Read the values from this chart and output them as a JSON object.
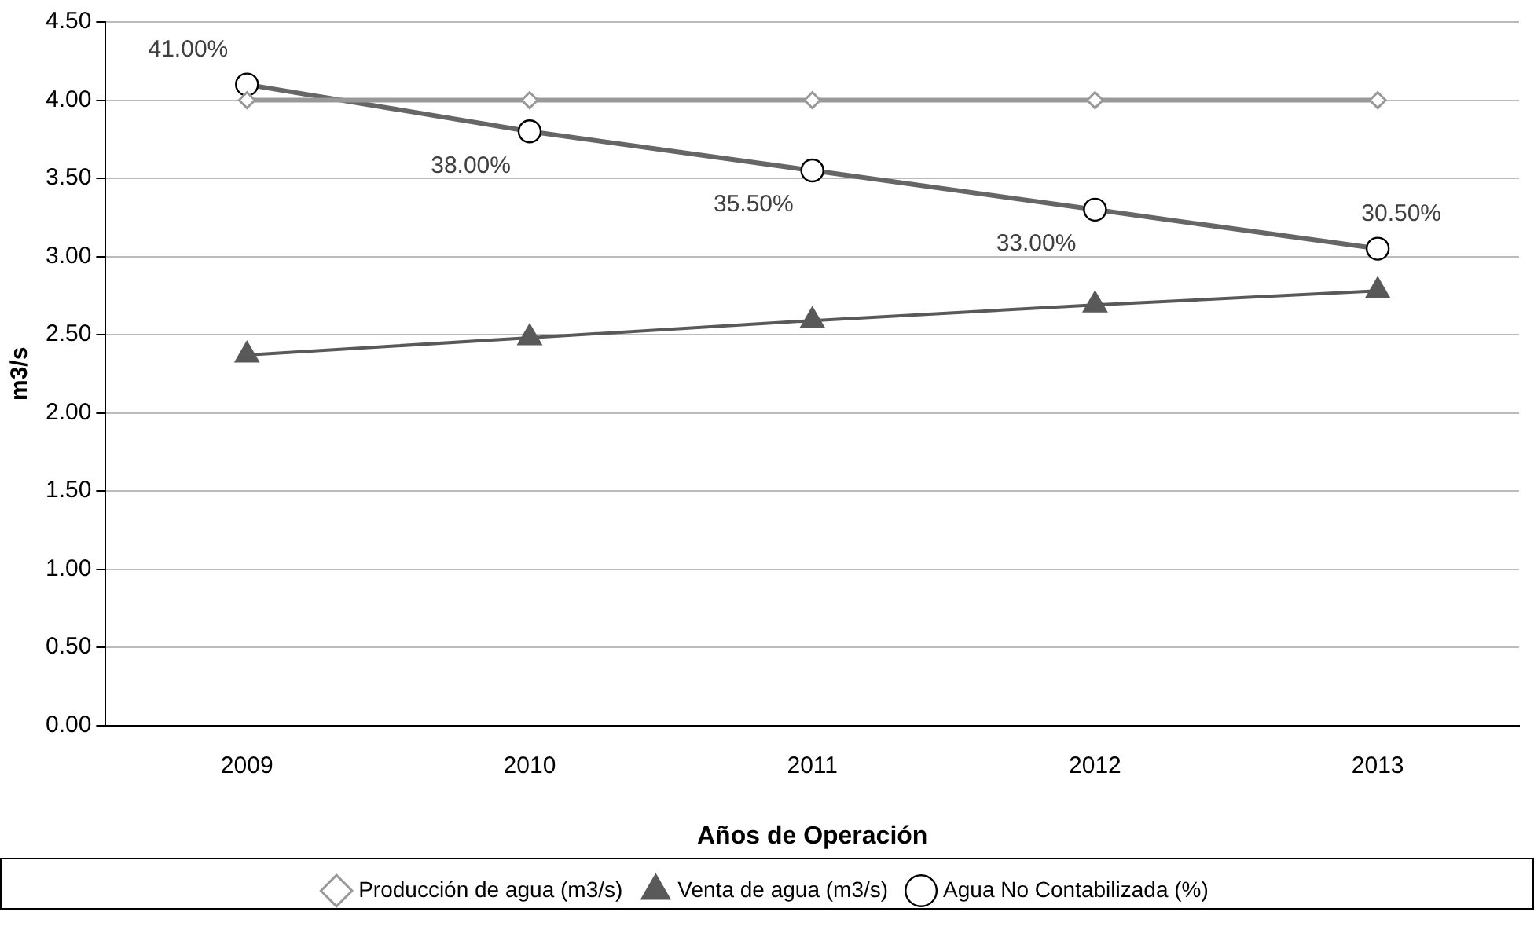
{
  "chart_data": {
    "type": "line",
    "xlabel": "Años de Operación",
    "ylabel": "m3/s",
    "categories": [
      "2009",
      "2010",
      "2011",
      "2012",
      "2013"
    ],
    "ylim": [
      0,
      4.5
    ],
    "yticks": [
      {
        "value": 0,
        "label": "0.00"
      },
      {
        "value": 0.5,
        "label": "0.50"
      },
      {
        "value": 1,
        "label": "1.00"
      },
      {
        "value": 1.5,
        "label": "1.50"
      },
      {
        "value": 2,
        "label": "2.00"
      },
      {
        "value": 2.5,
        "label": "2.50"
      },
      {
        "value": 3,
        "label": "3.00"
      },
      {
        "value": 3.5,
        "label": "3.50"
      },
      {
        "value": 4,
        "label": "4.00"
      },
      {
        "value": 4.5,
        "label": "4.50"
      }
    ],
    "y2lim": [
      0,
      45
    ],
    "grid": "y",
    "legend": "bottom",
    "tick_labels": "xy",
    "series": [
      {
        "name": "Producción de agua (m3/s)",
        "color": "#999999",
        "marker": "diamond",
        "values": [
          4,
          4,
          4,
          4,
          4
        ]
      },
      {
        "name": "Venta de agua (m3/s)",
        "color": "#595959",
        "marker": "triangle",
        "values": [
          2.37,
          2.48,
          2.59,
          2.69,
          2.78
        ]
      },
      {
        "name": "Agua No Contabilizada (%)",
        "color": "#666666",
        "marker": "circle",
        "axis": "y2",
        "values": [
          41,
          38,
          35.5,
          33,
          30.5
        ],
        "value_labels": [
          "41.00%",
          "38.00%",
          "35.50%",
          "33.00%",
          "30.50%"
        ]
      }
    ]
  }
}
